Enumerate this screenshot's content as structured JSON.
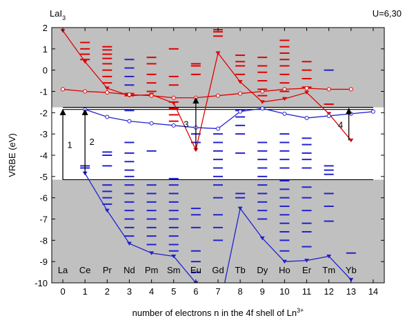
{
  "chart_data": {
    "type": "vrbe",
    "title": "LaI",
    "title_sub": "3",
    "corner_label": "U=6,30",
    "ylabel": "VRBE (eV)",
    "xlabel": "number of electrons n in the 4f shell of Ln",
    "xlabel_sup": "3+",
    "xlim": [
      -0.5,
      14.5
    ],
    "ylim": [
      -10,
      2
    ],
    "xticks": [
      0,
      1,
      2,
      3,
      4,
      5,
      6,
      7,
      8,
      9,
      10,
      11,
      12,
      13,
      14
    ],
    "yticks": [
      -10,
      -9,
      -8,
      -7,
      -6,
      -5,
      -4,
      -3,
      -2,
      -1,
      0,
      1,
      2
    ],
    "element_labels": [
      "La",
      "Ce",
      "Pr",
      "Nd",
      "Pm",
      "Sm",
      "Eu",
      "Gd",
      "Tb",
      "Dy",
      "Ho",
      "Er",
      "Tm",
      "Yb"
    ],
    "cb_bottom": -1.75,
    "exciton": -1.85,
    "vb_top": -5.15,
    "band_color": "#c0c0c0",
    "x": [
      0,
      1,
      2,
      3,
      4,
      5,
      6,
      7,
      8,
      9,
      10,
      11,
      12,
      13,
      14
    ],
    "series": [
      {
        "color": "#e00000",
        "marker": "triangle-down",
        "values": [
          1.85,
          0.4,
          -0.85,
          -1.2,
          -1.15,
          -1.55,
          -3.75,
          0.8,
          -0.55,
          -1.5,
          -1.35,
          -1.05,
          -2.05,
          -3.3,
          null
        ]
      },
      {
        "color": "#e00000",
        "marker": "circle",
        "values": [
          -0.9,
          -1.0,
          -1.05,
          -1.15,
          -1.2,
          -1.3,
          -1.3,
          -1.2,
          -1.1,
          -1.0,
          -0.9,
          -0.85,
          -0.9,
          -0.9,
          null
        ]
      },
      {
        "color": "#2020d0",
        "marker": "circle",
        "values": [
          null,
          -1.85,
          -2.2,
          -2.4,
          -2.5,
          -2.6,
          -2.7,
          -2.75,
          -1.95,
          -1.8,
          -2.05,
          -2.25,
          -2.15,
          -2.05,
          -1.95
        ]
      },
      {
        "color": "#2020d0",
        "marker": "triangle-down",
        "values": [
          null,
          -4.85,
          -6.6,
          -8.15,
          -8.6,
          -8.75,
          -10.0,
          -11.5,
          -6.5,
          -7.9,
          -9.0,
          -8.95,
          -8.75,
          -9.85,
          null
        ]
      }
    ],
    "levels": [
      {
        "x": 1,
        "color": "#e00000",
        "values": [
          0.5,
          0.75,
          1.0,
          1.3
        ]
      },
      {
        "x": 2,
        "color": "#e00000",
        "values": [
          -0.6,
          -0.3,
          0.0,
          0.3,
          0.55,
          0.75,
          0.95,
          1.1
        ]
      },
      {
        "x": 3,
        "color": "#e00000",
        "values": [
          -1.2,
          -1.1
        ]
      },
      {
        "x": 3,
        "color": "#2020d0",
        "values": [
          -0.7,
          -0.3,
          0.1,
          0.5
        ]
      },
      {
        "x": 4,
        "color": "#e00000",
        "values": [
          -1.0,
          -0.6,
          -0.2,
          0.3,
          0.6
        ]
      },
      {
        "x": 5,
        "color": "#e00000",
        "values": [
          -2.4,
          -2.1,
          -1.8,
          -1.5,
          -0.7,
          -0.3,
          1.0
        ]
      },
      {
        "x": 6,
        "color": "#e00000",
        "values": [
          -0.2,
          0.2,
          0.3
        ]
      },
      {
        "x": 7,
        "color": "#e00000",
        "values": [
          1.6,
          1.8,
          1.9
        ]
      },
      {
        "x": 8,
        "color": "#e00000",
        "values": [
          -0.2,
          0.2,
          0.4,
          0.7
        ]
      },
      {
        "x": 9,
        "color": "#e00000",
        "values": [
          -1.2,
          -0.9,
          -0.5,
          -0.1,
          0.2,
          0.6
        ]
      },
      {
        "x": 10,
        "color": "#e00000",
        "values": [
          -1.0,
          -0.6,
          -0.2,
          0.2,
          0.5,
          0.8,
          1.1,
          1.4
        ]
      },
      {
        "x": 11,
        "color": "#e00000",
        "values": [
          -0.8,
          -0.4,
          0.0,
          0.4
        ]
      },
      {
        "x": 12,
        "color": "#e00000",
        "values": [
          -1.6
        ]
      },
      {
        "x": 12,
        "color": "#2020d0",
        "values": [
          0.0
        ]
      },
      {
        "x": 1,
        "color": "#2020d0",
        "values": [
          -4.5,
          -4.6
        ]
      },
      {
        "x": 2,
        "color": "#2020d0",
        "values": [
          -3.85,
          -4.0,
          -4.5,
          -5.4,
          -5.7,
          -6.0,
          -6.3
        ]
      },
      {
        "x": 3,
        "color": "#2020d0",
        "values": [
          -1.9,
          -3.4,
          -3.9,
          -4.3,
          -4.7,
          -5.0,
          -5.4,
          -5.8,
          -6.2,
          -6.6,
          -7.0,
          -7.4,
          -7.8
        ]
      },
      {
        "x": 4,
        "color": "#2020d0",
        "values": [
          -3.8,
          -5.4,
          -5.8,
          -6.2,
          -6.6,
          -7.0,
          -7.4,
          -7.8,
          -8.2
        ]
      },
      {
        "x": 5,
        "color": "#2020d0",
        "values": [
          -5.1,
          -5.4,
          -5.8,
          -6.2,
          -6.6,
          -7.0,
          -7.4,
          -7.8,
          -8.2,
          -8.5
        ]
      },
      {
        "x": 6,
        "color": "#2020d0",
        "values": [
          -3.0,
          -3.4,
          -6.5,
          -6.8,
          -7.4,
          -8.5,
          -9.0,
          -9.5
        ]
      },
      {
        "x": 7,
        "color": "#2020d0",
        "values": [
          -3.0,
          -3.4,
          -3.8,
          -4.2,
          -4.6,
          -5.0,
          -5.4,
          -6.0,
          -6.8,
          -7.4,
          -8.0
        ]
      },
      {
        "x": 8,
        "color": "#2020d0",
        "values": [
          -1.9,
          -2.2,
          -2.6,
          -3.0,
          -3.9,
          -5.8,
          -6.0
        ]
      },
      {
        "x": 9,
        "color": "#2020d0",
        "values": [
          -3.4,
          -3.8,
          -4.2,
          -4.6,
          -5.0,
          -5.4,
          -5.8,
          -6.2,
          -6.6,
          -7.0
        ]
      },
      {
        "x": 10,
        "color": "#2020d0",
        "values": [
          -3.0,
          -3.4,
          -3.8,
          -4.2,
          -4.6,
          -5.2,
          -5.6,
          -6.0,
          -6.4,
          -6.8,
          -7.2,
          -7.6,
          -8.0,
          -8.5
        ]
      },
      {
        "x": 11,
        "color": "#2020d0",
        "values": [
          -3.2,
          -3.5,
          -3.9,
          -4.2,
          -4.6,
          -5.5,
          -6.0,
          -6.6,
          -7.2,
          -7.6,
          -8.3
        ]
      },
      {
        "x": 12,
        "color": "#2020d0",
        "values": [
          -4.5,
          -4.7,
          -4.9,
          -5.8,
          -6.4,
          -7.1
        ]
      },
      {
        "x": 13,
        "color": "#2020d0",
        "values": [
          -8.6
        ]
      }
    ],
    "arrows": [
      {
        "label": "1",
        "x": 0,
        "from": -5.15,
        "to": -1.85
      },
      {
        "label": "2",
        "x": 1,
        "from": -4.85,
        "to": -1.85
      },
      {
        "label": "3",
        "x": 6,
        "from": -3.75,
        "to": -1.3
      },
      {
        "label": "4",
        "x": 12.9,
        "from": -3.3,
        "to": -1.8
      }
    ]
  }
}
